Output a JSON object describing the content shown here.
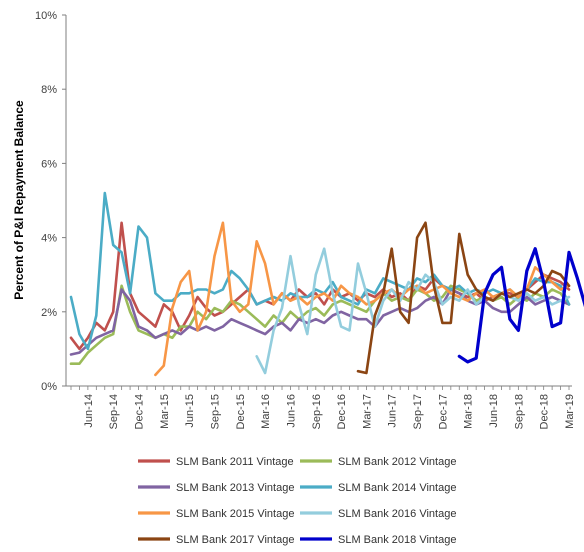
{
  "chart_data": {
    "type": "line",
    "title": "",
    "xlabel": "",
    "ylabel": "Percent of P&I Repayment  Balance",
    "ylim": [
      0,
      10
    ],
    "y_ticks": [
      "0%",
      "2%",
      "4%",
      "6%",
      "8%",
      "10%"
    ],
    "x_ticks": [
      "Jun-14",
      "Sep-14",
      "Dec-14",
      "Mar-15",
      "Jun-15",
      "Sep-15",
      "Dec-15",
      "Mar-16",
      "Jun-16",
      "Sep-16",
      "Dec-16",
      "Mar-17",
      "Jun-17",
      "Sep-17",
      "Dec-17",
      "Mar-18",
      "Jun-18",
      "Sep-18",
      "Dec-18",
      "Mar-19"
    ],
    "x_start": "Apr-14",
    "grid": false,
    "legend_position": "bottom",
    "series": [
      {
        "name": "SLM Bank 2011 Vintage",
        "color": "#c0504d",
        "start": 0,
        "values": [
          1.3,
          1.0,
          1.3,
          1.7,
          1.5,
          2.0,
          4.4,
          2.5,
          2.0,
          1.8,
          1.6,
          2.2,
          2.0,
          1.5,
          1.9,
          2.4,
          2.1,
          1.9,
          2.0,
          2.2,
          2.4,
          2.6,
          2.2,
          2.3,
          2.2,
          2.5,
          2.3,
          2.6,
          2.4,
          2.5,
          2.2,
          2.6,
          2.4,
          2.5,
          2.3,
          2.5,
          2.4,
          2.6,
          2.4,
          2.5,
          2.3,
          2.7,
          2.6,
          2.9,
          2.7,
          2.6,
          2.5,
          2.4,
          2.5,
          2.3,
          2.4,
          2.5,
          2.5,
          2.4,
          2.6,
          2.8,
          3.0,
          2.9,
          2.8,
          2.6
        ]
      },
      {
        "name": "SLM Bank 2012 Vintage",
        "color": "#9bbb59",
        "start": 0,
        "values": [
          0.6,
          0.6,
          0.9,
          1.1,
          1.3,
          1.4,
          2.7,
          2.0,
          1.5,
          1.4,
          1.3,
          1.4,
          1.3,
          1.6,
          1.6,
          2.0,
          1.8,
          2.1,
          2.0,
          2.3,
          2.2,
          2.0,
          1.8,
          1.6,
          1.9,
          1.7,
          2.0,
          1.8,
          2.0,
          2.1,
          1.9,
          2.2,
          2.3,
          2.2,
          2.1,
          2.0,
          2.3,
          2.5,
          2.3,
          2.4,
          2.3,
          2.6,
          2.5,
          2.3,
          2.4,
          2.7,
          2.6,
          2.5,
          2.3,
          2.4,
          2.3,
          2.4,
          2.2,
          2.4,
          2.3,
          2.5,
          2.4,
          2.6,
          2.5,
          2.2
        ]
      },
      {
        "name": "SLM Bank 2013 Vintage",
        "color": "#8064a2",
        "start": 0,
        "values": [
          0.85,
          0.9,
          1.1,
          1.3,
          1.4,
          1.5,
          2.6,
          2.3,
          1.6,
          1.5,
          1.3,
          1.4,
          1.5,
          1.4,
          1.6,
          1.5,
          1.6,
          1.5,
          1.6,
          1.8,
          1.7,
          1.6,
          1.5,
          1.4,
          1.6,
          1.7,
          1.5,
          1.8,
          1.7,
          1.8,
          1.7,
          1.9,
          2.0,
          1.9,
          1.8,
          1.8,
          1.6,
          1.9,
          2.0,
          2.1,
          2.0,
          2.1,
          2.3,
          2.4,
          2.2,
          2.6,
          2.5,
          2.3,
          2.2,
          2.3,
          2.1,
          2.0,
          2.0,
          2.2,
          2.4,
          2.2,
          2.3,
          2.4,
          2.3,
          2.2
        ]
      },
      {
        "name": "SLM Bank 2014 Vintage",
        "color": "#4bacc6",
        "start": 0,
        "values": [
          2.4,
          1.4,
          1.0,
          1.9,
          5.2,
          3.8,
          3.6,
          2.5,
          4.3,
          4.0,
          2.5,
          2.3,
          2.3,
          2.5,
          2.5,
          2.6,
          2.6,
          2.5,
          2.6,
          3.1,
          2.9,
          2.6,
          2.2,
          2.3,
          2.4,
          2.3,
          2.5,
          2.4,
          2.4,
          2.6,
          2.5,
          2.8,
          2.4,
          2.3,
          2.2,
          2.6,
          2.5,
          2.9,
          2.8,
          2.7,
          2.6,
          2.9,
          2.8,
          3.0,
          2.7,
          2.6,
          2.7,
          2.5,
          2.6,
          2.5,
          2.6,
          2.5,
          2.6,
          2.4,
          2.6,
          2.9,
          2.8,
          2.8,
          2.7,
          2.2
        ]
      },
      {
        "name": "SLM Bank 2015 Vintage",
        "color": "#f79646",
        "start": 10,
        "values": [
          0.3,
          0.55,
          2.1,
          2.8,
          3.1,
          1.5,
          2.0,
          3.5,
          4.4,
          2.3,
          2.0,
          2.2,
          3.9,
          3.3,
          2.2,
          2.5,
          2.3,
          2.4,
          2.2,
          2.4,
          2.5,
          2.3,
          2.7,
          2.5,
          2.4,
          2.2,
          2.3,
          2.5,
          2.6,
          2.4,
          2.6,
          2.7,
          2.5,
          2.6,
          2.7,
          2.5,
          2.4,
          2.3,
          2.5,
          2.6,
          2.4,
          2.5,
          2.6,
          2.4,
          2.6,
          3.2,
          3.0,
          2.8,
          2.6,
          2.7
        ]
      },
      {
        "name": "SLM Bank 2016 Vintage",
        "color": "#93cddd",
        "start": 22,
        "values": [
          0.8,
          0.35,
          1.5,
          2.1,
          3.5,
          2.2,
          1.4,
          3.0,
          3.7,
          2.5,
          1.6,
          1.5,
          3.3,
          2.5,
          1.6,
          2.3,
          2.6,
          2.3,
          2.8,
          2.6,
          3.0,
          2.8,
          2.2,
          2.4,
          2.3,
          2.6,
          2.2,
          2.4,
          2.3,
          2.5,
          2.4,
          2.3,
          2.5,
          2.3,
          2.4,
          2.2,
          2.3,
          2.4
        ]
      },
      {
        "name": "SLM Bank 2017 Vintage",
        "color": "#8b4513",
        "start": 34,
        "values": [
          0.4,
          0.35,
          1.9,
          2.5,
          3.7,
          2.0,
          1.7,
          4.0,
          4.4,
          2.7,
          1.7,
          1.7,
          4.1,
          3.0,
          2.6,
          2.4,
          2.3,
          2.5,
          2.4,
          2.5,
          2.6,
          2.5,
          2.7,
          3.1,
          3.0,
          2.7
        ]
      },
      {
        "name": "SLM Bank 2018 Vintage",
        "color": "#0000cc",
        "start": 46,
        "values": [
          0.8,
          0.65,
          0.75,
          2.5,
          3.0,
          3.2,
          1.8,
          1.5,
          3.1,
          3.7,
          2.8,
          1.6,
          1.7,
          3.6,
          2.9,
          2.1
        ]
      }
    ]
  }
}
